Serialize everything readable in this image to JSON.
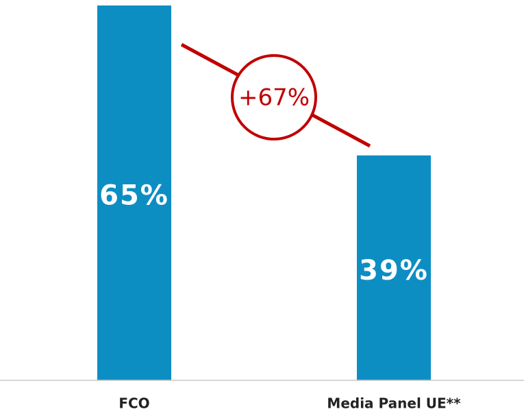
{
  "chart_data": {
    "type": "bar",
    "categories": [
      "FCO",
      "Media Panel UE**"
    ],
    "values": [
      65,
      39
    ],
    "value_labels": [
      "65%",
      "39%"
    ],
    "color": "#0d8ec3",
    "ylim": [
      0,
      65
    ],
    "annotation": "+67%"
  }
}
